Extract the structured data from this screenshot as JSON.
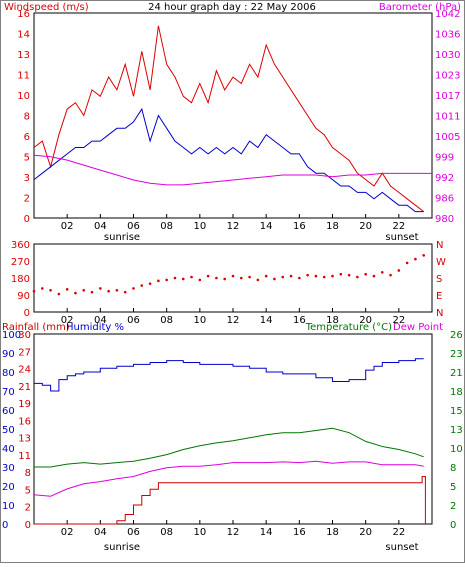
{
  "colors": {
    "windspeed": "#dd0000",
    "wind_avg": "#0000cc",
    "barometer": "#dd00dd",
    "direction": "#dd0000",
    "rainfall": "#cc0000",
    "humidity": "#0000cc",
    "temperature": "#007700",
    "dewpoint": "#dd00dd",
    "axis_gray": "#808080"
  },
  "chart_data": [
    {
      "type": "line",
      "title": "24 hour graph day : 22 May 2006",
      "left_label": "Windspeed (m/s)",
      "right_label": "Barometer (hPa)",
      "x_ticks": [
        "02",
        "04",
        "06",
        "08",
        "10",
        "12",
        "14",
        "16",
        "18",
        "20",
        "22"
      ],
      "annotations": [
        "sunrise",
        "sunset"
      ],
      "xlim": [
        0,
        24
      ],
      "ylim_left": [
        0,
        16
      ],
      "y_ticks_left": [
        "0",
        "2",
        "3",
        "5",
        "6",
        "8",
        "10",
        "11",
        "13",
        "14",
        "16"
      ],
      "ylim_right": [
        980,
        1042
      ],
      "y_ticks_right": [
        "980",
        "986",
        "992",
        "999",
        "1005",
        "1011",
        "1017",
        "1023",
        "1030",
        "1036",
        "1042"
      ],
      "series": [
        {
          "key": "gust",
          "x": [
            0.0,
            0.5,
            1.0,
            1.5,
            2.0,
            2.5,
            3.0,
            3.5,
            4.0,
            4.5,
            5.0,
            5.5,
            6.0,
            6.5,
            7.0,
            7.5,
            8.0,
            8.5,
            9.0,
            9.5,
            10.0,
            10.5,
            11.0,
            11.5,
            12.0,
            12.5,
            13.0,
            13.5,
            14.0,
            14.5,
            15.0,
            15.5,
            16.0,
            16.5,
            17.0,
            17.5,
            18.0,
            18.5,
            19.0,
            19.5,
            20.0,
            20.5,
            21.0,
            21.5,
            22.0,
            22.5,
            23.0,
            23.5
          ],
          "values": [
            5.5,
            6.0,
            4.0,
            6.5,
            8.5,
            9.0,
            8.0,
            10.0,
            9.5,
            11.0,
            10.0,
            12.0,
            9.5,
            13.0,
            10.0,
            15.0,
            12.0,
            11.0,
            9.5,
            9.0,
            10.5,
            9.0,
            11.5,
            10.0,
            11.0,
            10.5,
            12.0,
            11.0,
            13.5,
            12.0,
            11.0,
            10.0,
            9.0,
            8.0,
            7.0,
            6.5,
            5.5,
            5.0,
            4.5,
            3.5,
            3.0,
            2.5,
            3.5,
            2.5,
            2.0,
            1.5,
            1.0,
            0.5
          ]
        },
        {
          "key": "average",
          "x": [
            0.0,
            0.5,
            1.0,
            1.5,
            2.0,
            2.5,
            3.0,
            3.5,
            4.0,
            4.5,
            5.0,
            5.5,
            6.0,
            6.5,
            7.0,
            7.5,
            8.0,
            8.5,
            9.0,
            9.5,
            10.0,
            10.5,
            11.0,
            11.5,
            12.0,
            12.5,
            13.0,
            13.5,
            14.0,
            14.5,
            15.0,
            15.5,
            16.0,
            16.5,
            17.0,
            17.5,
            18.0,
            18.5,
            19.0,
            19.5,
            20.0,
            20.5,
            21.0,
            21.5,
            22.0,
            22.5,
            23.0,
            23.5
          ],
          "values": [
            3.0,
            3.5,
            4.0,
            4.5,
            5.0,
            5.5,
            5.5,
            6.0,
            6.0,
            6.5,
            7.0,
            7.0,
            7.5,
            8.5,
            6.0,
            8.0,
            7.0,
            6.0,
            5.5,
            5.0,
            5.5,
            5.0,
            5.5,
            5.0,
            5.5,
            5.0,
            6.0,
            5.5,
            6.5,
            6.0,
            5.5,
            5.0,
            5.0,
            4.0,
            3.5,
            3.5,
            3.0,
            2.5,
            2.5,
            2.0,
            2.0,
            1.5,
            2.0,
            1.5,
            1.0,
            1.0,
            0.5,
            0.5
          ]
        },
        {
          "key": "barometer",
          "axis": "right",
          "x": [
            0,
            1,
            2,
            3,
            4,
            5,
            6,
            7,
            8,
            9,
            10,
            11,
            12,
            13,
            14,
            15,
            16,
            17,
            18,
            19,
            20,
            21,
            22,
            23,
            24
          ],
          "values": [
            999.0,
            998.5,
            997.5,
            996.0,
            994.5,
            993.0,
            991.5,
            990.5,
            990.0,
            990.0,
            990.5,
            991.0,
            991.5,
            992.0,
            992.5,
            993.0,
            993.0,
            993.0,
            992.5,
            993.0,
            993.0,
            993.5,
            993.5,
            993.5,
            993.5
          ]
        }
      ]
    },
    {
      "type": "scatter",
      "xlim": [
        0,
        24
      ],
      "ylim": [
        0,
        360
      ],
      "y_ticks_left": [
        "0",
        "90",
        "180",
        "270",
        "360"
      ],
      "y_ticks_right": [
        "N",
        "E",
        "S",
        "W",
        "N"
      ],
      "x_ticks": [
        "02",
        "04",
        "06",
        "08",
        "10",
        "12",
        "14",
        "16",
        "18",
        "20",
        "22"
      ],
      "series": [
        {
          "key": "wind_direction",
          "x": [
            0.0,
            0.5,
            1.0,
            1.5,
            2.0,
            2.5,
            3.0,
            3.5,
            4.0,
            4.5,
            5.0,
            5.5,
            6.0,
            6.5,
            7.0,
            7.5,
            8.0,
            8.5,
            9.0,
            9.5,
            10.0,
            10.5,
            11.0,
            11.5,
            12.0,
            12.5,
            13.0,
            13.5,
            14.0,
            14.5,
            15.0,
            15.5,
            16.0,
            16.5,
            17.0,
            17.5,
            18.0,
            18.5,
            19.0,
            19.5,
            20.0,
            20.5,
            21.0,
            21.5,
            22.0,
            22.5,
            23.0,
            23.5
          ],
          "values": [
            110,
            125,
            115,
            95,
            120,
            100,
            115,
            105,
            125,
            110,
            115,
            105,
            125,
            140,
            150,
            165,
            170,
            180,
            175,
            185,
            170,
            190,
            180,
            175,
            190,
            180,
            185,
            170,
            190,
            175,
            185,
            190,
            180,
            195,
            190,
            185,
            190,
            200,
            195,
            185,
            200,
            190,
            210,
            195,
            220,
            260,
            280,
            300
          ]
        }
      ]
    },
    {
      "type": "line",
      "left_label_1": "Rainfall (mm)",
      "left_label_2": "Humidity %",
      "right_label_1": "Temperature (°C)",
      "right_label_2": "Dew Point",
      "x_ticks": [
        "02",
        "04",
        "06",
        "08",
        "10",
        "12",
        "14",
        "16",
        "18",
        "20",
        "22"
      ],
      "annotations": [
        "sunrise",
        "sunset"
      ],
      "xlim": [
        0,
        24
      ],
      "ylim_humidity": [
        0,
        100
      ],
      "y_ticks_humidity": [
        "0",
        "10",
        "20",
        "30",
        "40",
        "50",
        "60",
        "70",
        "80",
        "90",
        "100"
      ],
      "ylim_rain": [
        0,
        30
      ],
      "y_ticks_rain": [
        "0",
        "2",
        "5",
        "8",
        "11",
        "13",
        "16",
        "19",
        "21",
        "24",
        "27",
        "30"
      ],
      "ylim_temp": [
        0,
        26
      ],
      "y_ticks_temp": [
        "0",
        "2",
        "5",
        "8",
        "10",
        "13",
        "15",
        "18",
        "21",
        "23",
        "26"
      ],
      "series": [
        {
          "key": "humidity",
          "axis": "humidity",
          "x": [
            0.0,
            0.5,
            1.0,
            1.5,
            2.0,
            2.5,
            3.0,
            4.0,
            5.0,
            6.0,
            7.0,
            8.0,
            9.0,
            10.0,
            11.0,
            12.0,
            13.0,
            14.0,
            15.0,
            16.0,
            17.0,
            18.0,
            19.0,
            20.0,
            20.5,
            21.0,
            22.0,
            23.0,
            23.5
          ],
          "values": [
            74,
            73,
            70,
            76,
            78,
            79,
            80,
            82,
            83,
            84,
            85,
            86,
            85,
            84,
            84,
            83,
            82,
            80,
            79,
            79,
            77,
            75,
            76,
            81,
            83,
            85,
            86,
            87,
            87
          ]
        },
        {
          "key": "temperature",
          "axis": "temp",
          "x": [
            0,
            1,
            2,
            3,
            4,
            5,
            6,
            7,
            8,
            9,
            10,
            11,
            12,
            13,
            14,
            15,
            16,
            17,
            18,
            19,
            20,
            21,
            22,
            23,
            23.5
          ],
          "values": [
            7.8,
            7.8,
            8.2,
            8.4,
            8.2,
            8.4,
            8.6,
            9.0,
            9.5,
            10.2,
            10.7,
            11.1,
            11.4,
            11.8,
            12.2,
            12.5,
            12.5,
            12.8,
            13.1,
            12.5,
            11.3,
            10.6,
            10.2,
            9.6,
            9.2
          ]
        },
        {
          "key": "dewpoint",
          "axis": "temp",
          "x": [
            0,
            1,
            2,
            3,
            4,
            5,
            6,
            7,
            8,
            9,
            10,
            11,
            12,
            13,
            14,
            15,
            16,
            17,
            18,
            19,
            20,
            21,
            22,
            23,
            23.5
          ],
          "values": [
            4.0,
            3.8,
            4.8,
            5.5,
            5.8,
            6.2,
            6.5,
            7.2,
            7.7,
            7.9,
            7.9,
            8.1,
            8.4,
            8.4,
            8.4,
            8.5,
            8.4,
            8.6,
            8.3,
            8.5,
            8.5,
            8.1,
            8.1,
            8.1,
            7.9
          ]
        },
        {
          "key": "rainfall",
          "axis": "rain",
          "x": [
            0,
            4.5,
            5.0,
            5.5,
            6.0,
            6.5,
            7.0,
            7.5,
            8.0,
            9.0,
            12.0,
            16.0,
            20.0,
            22.0,
            23.0,
            23.4,
            23.6
          ],
          "values": [
            0,
            0,
            0.5,
            1.5,
            3.0,
            4.5,
            5.5,
            6.5,
            6.5,
            6.5,
            6.5,
            6.5,
            6.5,
            6.5,
            6.5,
            7.5,
            0
          ]
        }
      ]
    }
  ]
}
